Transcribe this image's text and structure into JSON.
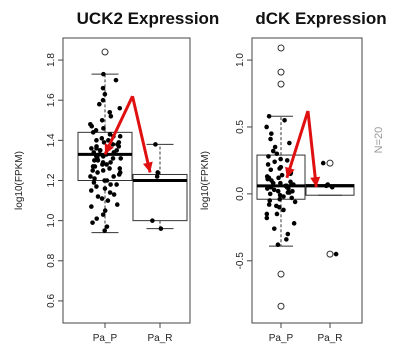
{
  "chart_data": [
    {
      "type": "box",
      "title": "UCK2 Expression",
      "ylabel": "log10(FPKM)",
      "categories": [
        "Pa_P",
        "Pa_R"
      ],
      "ylim": [
        0.5,
        1.9
      ],
      "yticks": [
        "0.6",
        "0.8",
        "1.0",
        "1.2",
        "1.4",
        "1.6",
        "1.8"
      ],
      "boxes": [
        {
          "name": "Pa_P",
          "min": 0.94,
          "q1": 1.2,
          "median": 1.33,
          "q3": 1.44,
          "max": 1.73,
          "outliers": [
            1.84
          ]
        },
        {
          "name": "Pa_R",
          "min": 0.96,
          "q1": 1.0,
          "median": 1.2,
          "q3": 1.23,
          "max": 1.38,
          "outliers": []
        }
      ],
      "points": {
        "Pa_P": [
          0.95,
          0.97,
          0.99,
          1.01,
          1.03,
          1.05,
          1.07,
          1.08,
          1.1,
          1.11,
          1.12,
          1.13,
          1.14,
          1.15,
          1.16,
          1.17,
          1.18,
          1.19,
          1.2,
          1.2,
          1.21,
          1.22,
          1.23,
          1.24,
          1.25,
          1.25,
          1.26,
          1.27,
          1.28,
          1.28,
          1.29,
          1.3,
          1.3,
          1.31,
          1.32,
          1.32,
          1.33,
          1.33,
          1.34,
          1.34,
          1.35,
          1.35,
          1.36,
          1.37,
          1.37,
          1.38,
          1.39,
          1.4,
          1.4,
          1.41,
          1.42,
          1.43,
          1.44,
          1.45,
          1.46,
          1.47,
          1.48,
          1.5,
          1.52,
          1.54,
          1.56,
          1.58,
          1.6,
          1.63,
          1.66,
          1.7,
          1.73,
          1.29,
          1.31,
          1.36,
          1.38,
          1.27,
          1.24,
          1.22,
          1.18,
          1.42,
          1.39,
          1.35,
          1.31,
          1.26
        ],
        "Pa_R": [
          0.96,
          1.0,
          1.22,
          1.24,
          1.38
        ]
      },
      "arrow": {
        "from": [
          1.5,
          1.62
        ],
        "to": [
          1.0,
          1.33
        ],
        "to2": [
          1.82,
          1.24
        ]
      }
    },
    {
      "type": "box",
      "title": "dCK Expression",
      "ylabel": "log10(FPKM)",
      "categories": [
        "Pa_P",
        "Pa_R"
      ],
      "ylim": [
        -0.95,
        1.15
      ],
      "yticks": [
        "-0.5",
        "0.0",
        "0.5",
        "1.0"
      ],
      "boxes": [
        {
          "name": "Pa_P",
          "min": -0.39,
          "q1": -0.04,
          "median": 0.06,
          "q3": 0.29,
          "max": 0.58,
          "outliers": [
            1.09,
            0.91,
            0.82,
            -0.6,
            -0.84
          ]
        },
        {
          "name": "Pa_R",
          "min": -0.01,
          "q1": -0.01,
          "median": 0.06,
          "q3": 0.07,
          "max": 0.07,
          "outliers": [
            0.23,
            -0.45
          ]
        }
      ],
      "points": {
        "Pa_P": [
          -0.38,
          -0.34,
          -0.3,
          -0.26,
          -0.22,
          -0.18,
          -0.15,
          -0.12,
          -0.1,
          -0.08,
          -0.06,
          -0.04,
          -0.03,
          -0.02,
          -0.01,
          0.0,
          0.01,
          0.02,
          0.03,
          0.04,
          0.05,
          0.05,
          0.06,
          0.06,
          0.07,
          0.08,
          0.09,
          0.1,
          0.11,
          0.12,
          0.13,
          0.14,
          0.15,
          0.16,
          0.18,
          0.2,
          0.22,
          0.24,
          0.26,
          0.28,
          0.3,
          0.32,
          0.35,
          0.38,
          0.41,
          0.45,
          0.5,
          0.55,
          0.58,
          0.02,
          -0.05,
          0.08,
          0.12,
          -0.15,
          0.04,
          0.19,
          0.01,
          -0.09,
          0.07,
          0.25
        ],
        "Pa_R": [
          0.05,
          0.06,
          0.07,
          0.23,
          -0.45
        ]
      },
      "arrow": {
        "from": [
          1.55,
          0.62
        ],
        "to": [
          1.72,
          0.05
        ],
        "to2": [
          1.12,
          0.12
        ]
      }
    }
  ],
  "side_label": "N=20"
}
